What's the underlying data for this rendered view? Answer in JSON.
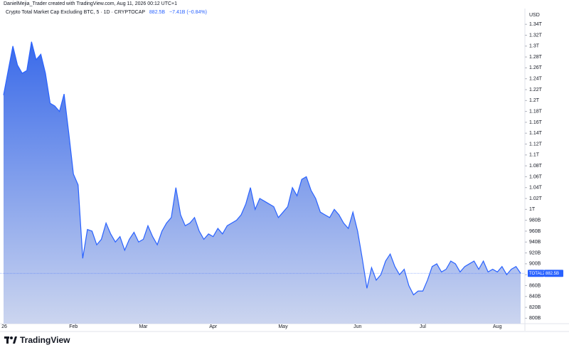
{
  "header": {
    "credit": "DanielMejia_Trader created with TradingView.com, Aug 11, 2026 00:12 UTC+1"
  },
  "footer": {
    "logo": "TradingView"
  },
  "chart_data": {
    "type": "area",
    "title": "Crypto Total Market Cap Excluding BTC, 5 · 1D · CRYPTOCAP",
    "last_label": "882.5B",
    "change": "−7.41B (−0.84%)",
    "y_unit": "USD",
    "categories": [
      "26",
      null,
      null,
      null,
      null,
      null,
      null,
      null,
      null,
      null,
      null,
      null,
      null,
      null,
      null,
      "Feb",
      null,
      null,
      null,
      null,
      null,
      null,
      null,
      null,
      null,
      null,
      null,
      null,
      null,
      null,
      "Mar",
      null,
      null,
      null,
      null,
      null,
      null,
      null,
      null,
      null,
      null,
      null,
      null,
      null,
      null,
      "Apr",
      null,
      null,
      null,
      null,
      null,
      null,
      null,
      null,
      null,
      null,
      null,
      null,
      null,
      null,
      "May",
      null,
      null,
      null,
      null,
      null,
      null,
      null,
      null,
      null,
      null,
      null,
      null,
      null,
      null,
      null,
      "Jun",
      null,
      null,
      null,
      null,
      null,
      null,
      null,
      null,
      null,
      null,
      null,
      null,
      null,
      "Jul",
      null,
      null,
      null,
      null,
      null,
      null,
      null,
      null,
      null,
      null,
      null,
      null,
      null,
      null,
      null,
      "Aug",
      null,
      null,
      null,
      null,
      null
    ],
    "series": [
      {
        "name": "TOTAL2",
        "color": "#2962ff",
        "values": [
          1210,
          1255,
          1300,
          1265,
          1250,
          1255,
          1308,
          1275,
          1285,
          1250,
          1195,
          1190,
          1180,
          1212,
          1140,
          1065,
          1045,
          910,
          963,
          960,
          935,
          945,
          975,
          955,
          940,
          950,
          925,
          945,
          958,
          940,
          945,
          970,
          950,
          935,
          960,
          975,
          985,
          1040,
          990,
          970,
          975,
          985,
          960,
          945,
          955,
          950,
          965,
          955,
          970,
          975,
          980,
          990,
          1010,
          1040,
          1000,
          1020,
          1015,
          1010,
          1005,
          985,
          995,
          1005,
          1040,
          1025,
          1055,
          1060,
          1035,
          1020,
          995,
          990,
          985,
          1000,
          990,
          975,
          965,
          995,
          960,
          910,
          855,
          893,
          870,
          880,
          905,
          918,
          895,
          880,
          890,
          860,
          843,
          850,
          850,
          870,
          895,
          900,
          885,
          890,
          905,
          900,
          885,
          895,
          900,
          905,
          890,
          905,
          885,
          890,
          885,
          895,
          880,
          890,
          895,
          882.5
        ]
      }
    ],
    "ylim": [
      790,
      1369
    ],
    "yticks": [
      {
        "value": 800,
        "label": "800B"
      },
      {
        "value": 820,
        "label": "820B"
      },
      {
        "value": 840,
        "label": "840B"
      },
      {
        "value": 860,
        "label": "860B"
      },
      {
        "value": 880,
        "label": "880B"
      },
      {
        "value": 900,
        "label": "900B"
      },
      {
        "value": 920,
        "label": "920B"
      },
      {
        "value": 940,
        "label": "940B"
      },
      {
        "value": 960,
        "label": "960B"
      },
      {
        "value": 980,
        "label": "980B"
      },
      {
        "value": 1000,
        "label": "1T"
      },
      {
        "value": 1020,
        "label": "1.02T"
      },
      {
        "value": 1040,
        "label": "1.04T"
      },
      {
        "value": 1060,
        "label": "1.06T"
      },
      {
        "value": 1080,
        "label": "1.08T"
      },
      {
        "value": 1100,
        "label": "1.1T"
      },
      {
        "value": 1120,
        "label": "1.12T"
      },
      {
        "value": 1140,
        "label": "1.14T"
      },
      {
        "value": 1160,
        "label": "1.16T"
      },
      {
        "value": 1180,
        "label": "1.18T"
      },
      {
        "value": 1200,
        "label": "1.2T"
      },
      {
        "value": 1220,
        "label": "1.22T"
      },
      {
        "value": 1240,
        "label": "1.24T"
      },
      {
        "value": 1260,
        "label": "1.26T"
      },
      {
        "value": 1280,
        "label": "1.28T"
      },
      {
        "value": 1300,
        "label": "1.3T"
      },
      {
        "value": 1320,
        "label": "1.32T"
      },
      {
        "value": 1340,
        "label": "1.34T"
      }
    ],
    "grid": false
  }
}
